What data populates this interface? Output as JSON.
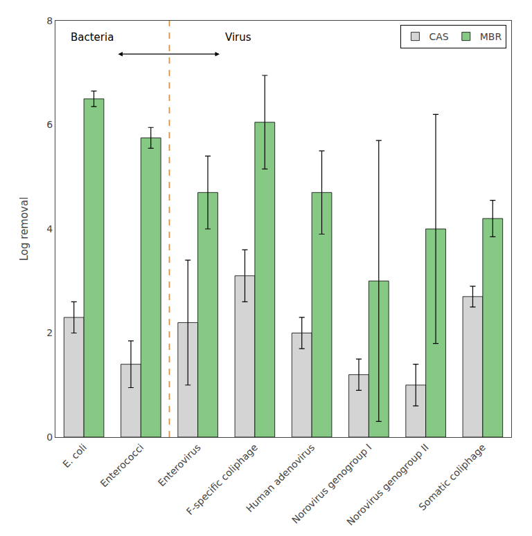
{
  "chart_data": {
    "type": "bar",
    "categories": [
      "E. coli",
      "Enterococci",
      "Enterovirus",
      "F-specific coliphage",
      "Human adenovirus",
      "Norovirus genogroup I",
      "Norovirus genogroup II",
      "Somatic coliphage"
    ],
    "series": [
      {
        "name": "CAS",
        "color": "#d4d4d4",
        "values": [
          2.3,
          1.4,
          2.2,
          3.1,
          2.0,
          1.2,
          1.0,
          2.7
        ],
        "err_low": [
          0.3,
          0.45,
          1.2,
          0.5,
          0.3,
          0.3,
          0.4,
          0.2
        ],
        "err_high": [
          0.3,
          0.45,
          1.2,
          0.5,
          0.3,
          0.3,
          0.4,
          0.2
        ]
      },
      {
        "name": "MBR",
        "color": "#85c985",
        "values": [
          6.5,
          5.75,
          4.7,
          6.05,
          4.7,
          3.0,
          4.0,
          4.2
        ],
        "err_low": [
          0.15,
          0.2,
          0.7,
          0.9,
          0.8,
          2.7,
          2.2,
          0.35
        ],
        "err_high": [
          0.15,
          0.2,
          0.7,
          0.9,
          0.8,
          2.7,
          2.2,
          0.35
        ]
      }
    ],
    "ylabel": "Log removal",
    "ylim": [
      0,
      8
    ],
    "yticks": [
      0,
      2,
      4,
      6,
      8
    ],
    "grid": false,
    "legend": "upper right",
    "divider": {
      "after": 2,
      "color": "#d4924a",
      "line_style": "dashed"
    },
    "annotations": [
      {
        "text": "Bacteria",
        "side": "left"
      },
      {
        "text": "Virus",
        "side": "right"
      }
    ]
  }
}
